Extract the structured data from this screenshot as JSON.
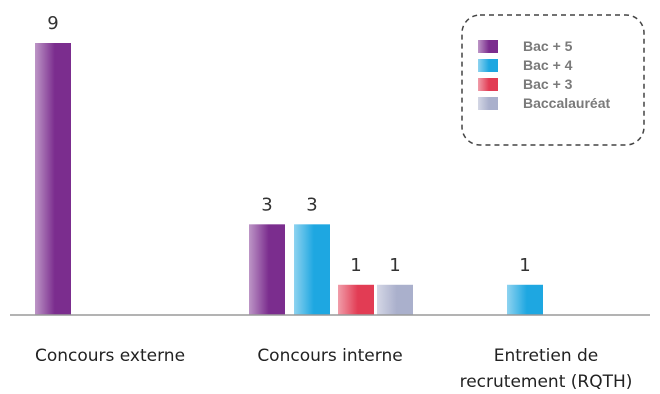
{
  "chart_data": {
    "type": "bar",
    "categories": [
      "Concours externe",
      "Concours interne",
      "Entretien de recrutement (RQTH)"
    ],
    "category_lines": [
      [
        "Concours externe"
      ],
      [
        "Concours interne"
      ],
      [
        "Entretien de",
        "recrutement (RQTH)"
      ]
    ],
    "series": [
      {
        "name": "Bac + 5",
        "values": [
          9,
          3,
          null
        ],
        "color": "#7b2d8e"
      },
      {
        "name": "Bac + 4",
        "values": [
          null,
          3,
          1
        ],
        "color": "#1ea7e1"
      },
      {
        "name": "Bac + 3",
        "values": [
          null,
          1,
          null
        ],
        "color": "#e23c54"
      },
      {
        "name": "Baccalauréat",
        "values": [
          null,
          1,
          null
        ],
        "color": "#aab0cc"
      }
    ],
    "ylim": [
      0,
      9
    ],
    "grid": false,
    "legend": "top-right",
    "title": "",
    "xlabel": "",
    "ylabel": ""
  }
}
